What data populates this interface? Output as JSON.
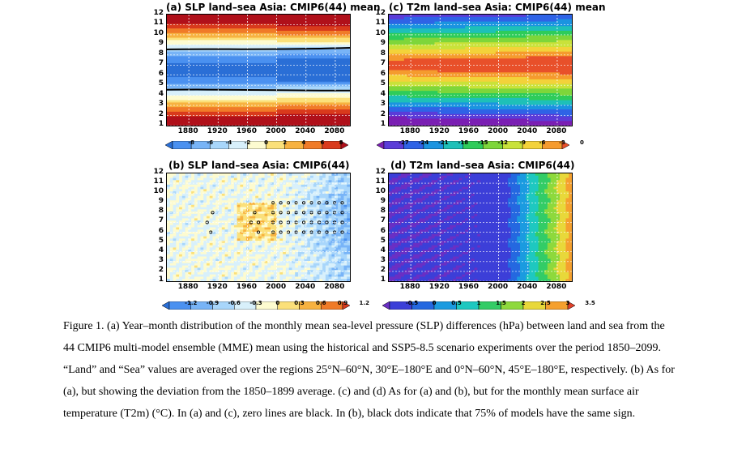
{
  "figure": {
    "panels": [
      {
        "id": "a",
        "title": "(a) SLP land–sea Asia: CMIP6(44) mean",
        "kind": "slp_mean",
        "colorbar_ticks": [
          "-8",
          "-6",
          "-4",
          "-2",
          "0",
          "2",
          "4",
          "6",
          "8"
        ],
        "colors": [
          "#2a6fd6",
          "#4b91f0",
          "#78b4f7",
          "#a8d6fb",
          "#d8f0fb",
          "#fdfbd0",
          "#fbe07a",
          "#f7b240",
          "#f07b28",
          "#d93a1c",
          "#b0101a"
        ]
      },
      {
        "id": "c",
        "title": "(c) T2m land–sea Asia: CMIP6(44) mean",
        "kind": "t2m_mean",
        "colorbar_ticks": [
          "-27",
          "-24",
          "-21",
          "-18",
          "-15",
          "-12",
          "-9",
          "-6",
          "-3",
          "0"
        ],
        "colors": [
          "#7a1fb3",
          "#5b3cd8",
          "#2f63e6",
          "#1b94e0",
          "#1ec0b8",
          "#2ecc5a",
          "#7ed63a",
          "#c9e23a",
          "#f3d23a",
          "#f59b2e",
          "#e8502a"
        ]
      },
      {
        "id": "b",
        "title": "(b) SLP land–sea Asia: CMIP6(44)",
        "kind": "slp_dev",
        "colorbar_ticks": [
          "-1.2",
          "-0.9",
          "-0.6",
          "-0.3",
          "0",
          "0.3",
          "0.6",
          "0.9",
          "1.2"
        ],
        "colors": [
          "#2a6fd6",
          "#4b91f0",
          "#78b4f7",
          "#a8d6fb",
          "#d8f0fb",
          "#fdfbd0",
          "#fbe07a",
          "#f7b240",
          "#f07b28",
          "#d93a1c"
        ]
      },
      {
        "id": "d",
        "title": "(d) T2m land–sea Asia: CMIP6(44)",
        "kind": "t2m_dev",
        "colorbar_ticks": [
          "-0.5",
          "0",
          "0.5",
          "1",
          "1.5",
          "2",
          "2.5",
          "3",
          "3.5"
        ],
        "colors": [
          "#6a2fc4",
          "#3c3fd8",
          "#2468e0",
          "#1b9be0",
          "#1ec8c0",
          "#33cc66",
          "#8ed93c",
          "#e8d83a",
          "#f5a02e",
          "#e0402a"
        ]
      }
    ],
    "y_ticks": [
      "1",
      "2",
      "3",
      "4",
      "5",
      "6",
      "7",
      "8",
      "9",
      "10",
      "11",
      "12"
    ],
    "x_ticks": [
      "1880",
      "1920",
      "1960",
      "2000",
      "2040",
      "2080"
    ]
  },
  "caption": {
    "text": "Figure 1. (a) Year–month distribution of the monthly mean sea-level pressure (SLP) differences (hPa) between land and sea from the 44 CMIP6 multi-model ensemble (MME) mean using the historical and SSP5-8.5 scenario experiments over the period 1850–2099. “Land” and “Sea” values are averaged over the regions 25°N–60°N, 30°E–180°E and 0°N–60°N, 45°E–180°E, respectively. (b) As for (a), but showing the deviation from the 1850–1899 average. (c) and (d) As for (a) and (b), but for the monthly mean surface air temperature (T2m) (°C). In (a) and (c), zero lines are black. In (b), black dots indicate that 75% of models have the same sign."
  }
}
